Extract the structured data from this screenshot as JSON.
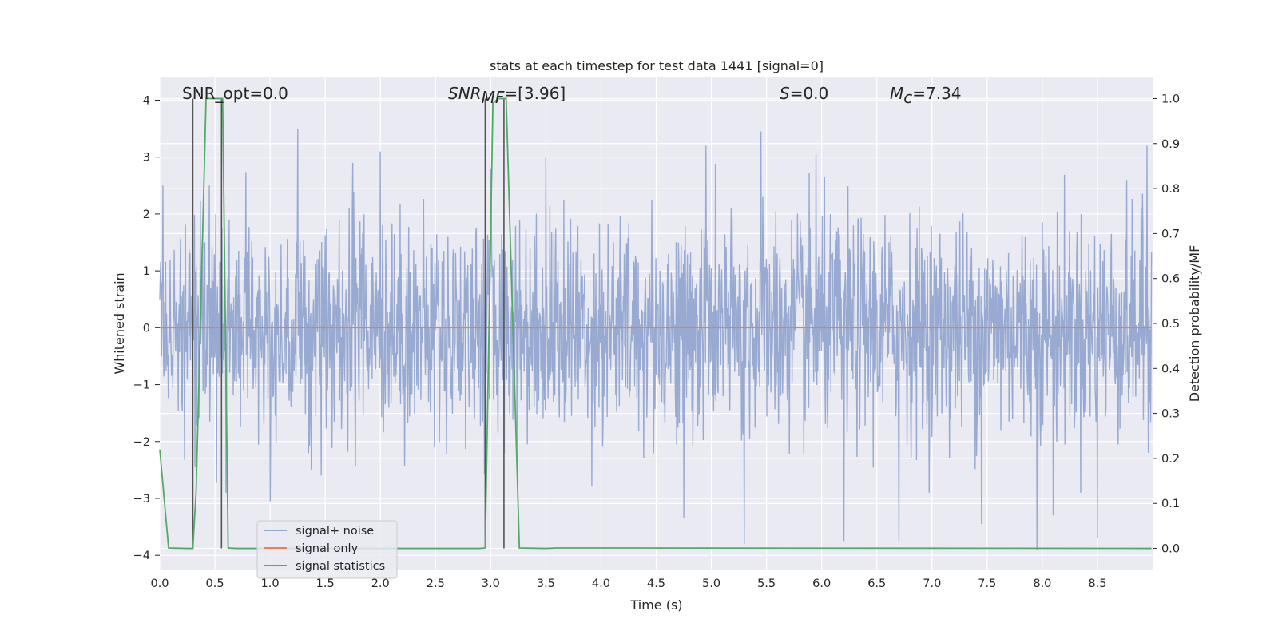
{
  "chart_data": {
    "type": "line",
    "title": "stats at each timestep for test data 1441 [signal=0]",
    "xlabel": "Time (s)",
    "ylabel": "Whitened strain",
    "y2label": "Detection probability/MF",
    "xlim": [
      0.0,
      9.0
    ],
    "ylim": [
      -4.25,
      4.4
    ],
    "y2lim": [
      -0.047,
      1.047
    ],
    "xticks": [
      "0.0",
      "0.5",
      "1.0",
      "1.5",
      "2.0",
      "2.5",
      "3.0",
      "3.5",
      "4.0",
      "4.5",
      "5.0",
      "5.5",
      "6.0",
      "6.5",
      "7.0",
      "7.5",
      "8.0",
      "8.5"
    ],
    "yticks": [
      "4",
      "3",
      "2",
      "1",
      "0",
      "−1",
      "−2",
      "−3",
      "−4"
    ],
    "y2ticks": [
      "1.0",
      "0.9",
      "0.8",
      "0.7",
      "0.6",
      "0.5",
      "0.4",
      "0.3",
      "0.2",
      "0.1",
      "0.0"
    ],
    "annotations": {
      "snr_opt": "SNR_opt=0.0",
      "snr_mf_base": "SNR",
      "snr_mf_sub": "MF",
      "snr_mf_val": "=[3.96]",
      "s_sym": "S",
      "s_val": "=0.0",
      "mc_sym": "M",
      "mc_sub": "c",
      "mc_val": "=7.34"
    },
    "series": [
      {
        "name": "signal+ noise",
        "axis": "left",
        "color": "#94a7cf",
        "description": "whitened noise time series, approx. Gaussian, amplitude mostly within ±2.5, peaks up to 3.5 / -3.9",
        "x_range": [
          0.0,
          8.99
        ],
        "sample_count": 2200,
        "envelope_peaks": [
          [
            0.03,
            2.5
          ],
          [
            0.32,
            -2.45
          ],
          [
            0.45,
            2.5
          ],
          [
            0.6,
            -2.9
          ],
          [
            1.0,
            -3.05
          ],
          [
            1.25,
            3.5
          ],
          [
            1.75,
            2.9
          ],
          [
            2.0,
            3.1
          ],
          [
            3.0,
            2.8
          ],
          [
            3.5,
            3.0
          ],
          [
            4.75,
            -3.35
          ],
          [
            4.95,
            3.2
          ],
          [
            5.3,
            -3.8
          ],
          [
            5.45,
            3.45
          ],
          [
            5.95,
            3.05
          ],
          [
            6.2,
            -3.75
          ],
          [
            6.7,
            -3.75
          ],
          [
            7.45,
            -3.45
          ],
          [
            7.95,
            -3.9
          ],
          [
            8.1,
            -3.3
          ],
          [
            8.5,
            -3.7
          ],
          [
            8.95,
            3.2
          ]
        ]
      },
      {
        "name": "signal only",
        "axis": "left",
        "color": "#dd8452",
        "x": [
          0.0,
          8.99
        ],
        "y": [
          0.0,
          0.0
        ]
      },
      {
        "name": "signal statistics",
        "axis": "right",
        "color": "#55a868",
        "x": [
          0.0,
          0.08,
          0.25,
          0.3,
          0.33,
          0.42,
          0.44,
          0.56,
          0.57,
          0.62,
          0.7,
          2.9,
          2.95,
          3.02,
          3.07,
          3.14,
          3.26,
          3.5,
          3.6,
          8.99
        ],
        "y": [
          0.22,
          0.001,
          0.0,
          0.0,
          0.13,
          1.0,
          1.0,
          1.0,
          1.0,
          0.001,
          0.0,
          0.0,
          0.001,
          0.99,
          1.0,
          1.0,
          0.001,
          0.0,
          0.001,
          0.0
        ]
      }
    ],
    "markers": {
      "color": "#555555",
      "description": "vertical grey lines on right axis",
      "x": [
        0.3,
        0.56,
        2.95,
        3.12
      ],
      "y_bottom": 0.0,
      "y_top": 1.0
    },
    "legend": {
      "position": "lower-left",
      "entries": [
        "signal+ noise",
        "signal only",
        "signal statistics"
      ]
    },
    "grid": true
  }
}
